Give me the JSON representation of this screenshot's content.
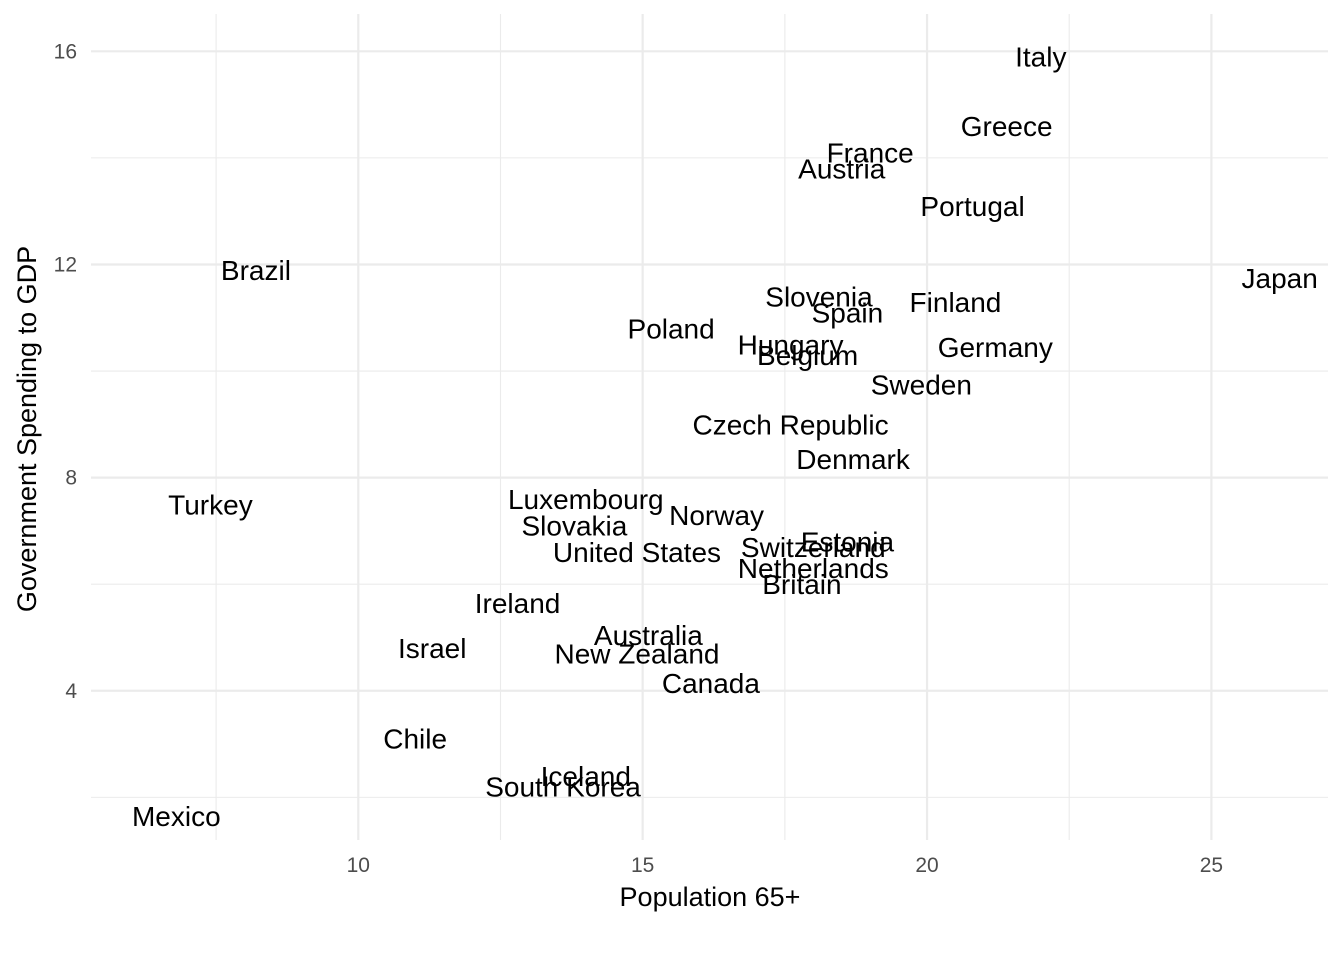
{
  "chart_data": {
    "type": "scatter",
    "title": "",
    "xlabel": "Population 65+",
    "ylabel": "Government Spending to GDP",
    "xlim": [
      5.3,
      27.05
    ],
    "ylim": [
      1.2,
      16.7
    ],
    "x_major_ticks": [
      10,
      15,
      20,
      25
    ],
    "x_minor_ticks": [
      7.5,
      12.5,
      17.5,
      22.5
    ],
    "y_major_ticks": [
      4,
      8,
      12,
      16
    ],
    "y_minor_ticks": [
      2,
      6,
      10,
      14
    ],
    "x_tick_labels": [
      "10",
      "15",
      "20",
      "25"
    ],
    "y_tick_labels": [
      "4",
      "8",
      "12",
      "16"
    ],
    "grid": true,
    "legend": "none",
    "marker": "text",
    "points": [
      {
        "label": "Italy",
        "x": 22.0,
        "y": 15.9
      },
      {
        "label": "Greece",
        "x": 21.4,
        "y": 14.6
      },
      {
        "label": "France",
        "x": 19.0,
        "y": 14.1
      },
      {
        "label": "Austria",
        "x": 18.5,
        "y": 13.8
      },
      {
        "label": "Portugal",
        "x": 20.8,
        "y": 13.1
      },
      {
        "label": "Brazil",
        "x": 8.2,
        "y": 11.9
      },
      {
        "label": "Japan",
        "x": 26.2,
        "y": 11.75
      },
      {
        "label": "Slovenia",
        "x": 18.1,
        "y": 11.4
      },
      {
        "label": "Spain",
        "x": 18.6,
        "y": 11.1
      },
      {
        "label": "Finland",
        "x": 20.5,
        "y": 11.3
      },
      {
        "label": "Poland",
        "x": 15.5,
        "y": 10.8
      },
      {
        "label": "Hungary",
        "x": 17.6,
        "y": 10.5
      },
      {
        "label": "Belgium",
        "x": 17.9,
        "y": 10.3
      },
      {
        "label": "Germany",
        "x": 21.2,
        "y": 10.45
      },
      {
        "label": "Sweden",
        "x": 19.9,
        "y": 9.75
      },
      {
        "label": "Czech Republic",
        "x": 17.6,
        "y": 9.0
      },
      {
        "label": "Denmark",
        "x": 18.7,
        "y": 8.35
      },
      {
        "label": "Turkey",
        "x": 7.4,
        "y": 7.5
      },
      {
        "label": "Luxembourg",
        "x": 14.0,
        "y": 7.6
      },
      {
        "label": "Norway",
        "x": 16.3,
        "y": 7.3
      },
      {
        "label": "Slovakia",
        "x": 13.8,
        "y": 7.1
      },
      {
        "label": "Estonia",
        "x": 18.6,
        "y": 6.8
      },
      {
        "label": "Switzerland",
        "x": 18.0,
        "y": 6.7
      },
      {
        "label": "United States",
        "x": 14.9,
        "y": 6.6
      },
      {
        "label": "Netherlands",
        "x": 18.0,
        "y": 6.3
      },
      {
        "label": "Britain",
        "x": 17.8,
        "y": 6.0
      },
      {
        "label": "Ireland",
        "x": 12.8,
        "y": 5.65
      },
      {
        "label": "Australia",
        "x": 15.1,
        "y": 5.05
      },
      {
        "label": "New Zealand",
        "x": 14.9,
        "y": 4.7
      },
      {
        "label": "Israel",
        "x": 11.3,
        "y": 4.8
      },
      {
        "label": "Canada",
        "x": 16.2,
        "y": 4.15
      },
      {
        "label": "Chile",
        "x": 11.0,
        "y": 3.1
      },
      {
        "label": "Iceland",
        "x": 14.0,
        "y": 2.4
      },
      {
        "label": "South Korea",
        "x": 13.6,
        "y": 2.2
      },
      {
        "label": "Mexico",
        "x": 6.8,
        "y": 1.65
      }
    ]
  }
}
